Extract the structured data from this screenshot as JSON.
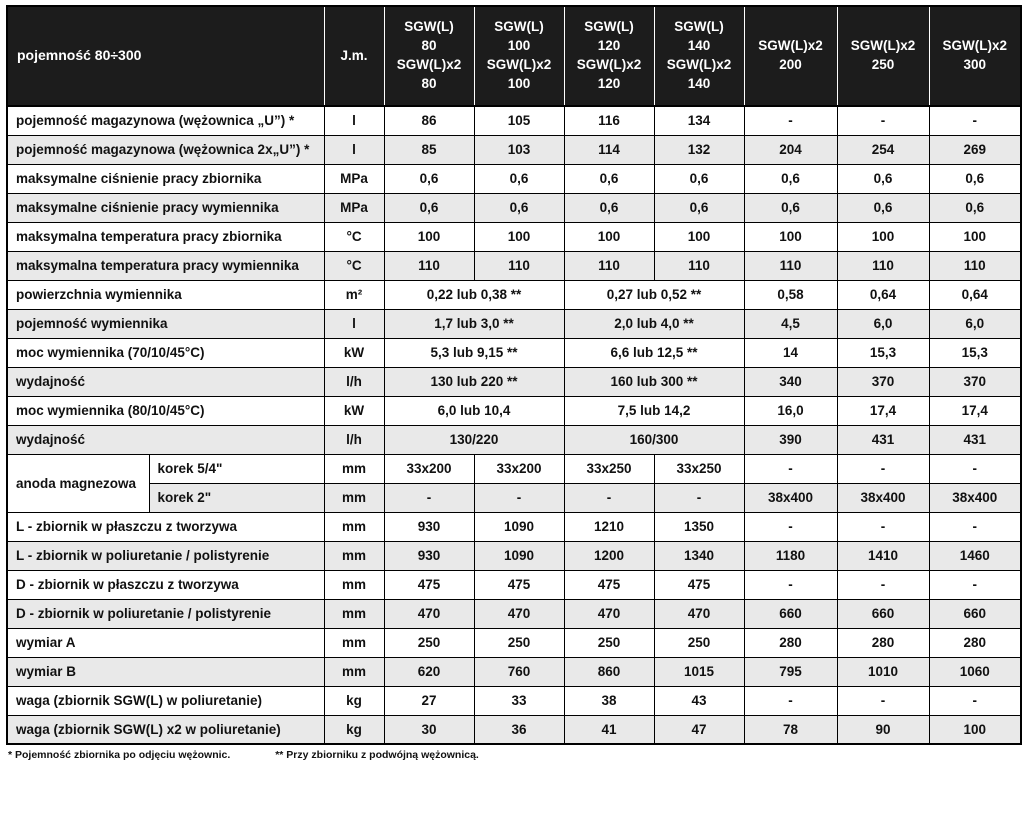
{
  "colors": {
    "header_bg": "#1c1c1c",
    "header_text": "#ffffff",
    "row_alt": "#e9e9e9",
    "border": "#000000"
  },
  "table": {
    "header": {
      "title": "pojemność 80÷300",
      "unit_col": "J.m.",
      "columns": [
        {
          "lines": [
            "SGW(L)",
            "80",
            "SGW(L)x2",
            "80"
          ]
        },
        {
          "lines": [
            "SGW(L)",
            "100",
            "SGW(L)x2",
            "100"
          ]
        },
        {
          "lines": [
            "SGW(L)",
            "120",
            "SGW(L)x2",
            "120"
          ]
        },
        {
          "lines": [
            "SGW(L)",
            "140",
            "SGW(L)x2",
            "140"
          ]
        },
        {
          "lines": [
            "SGW(L)x2",
            "200"
          ]
        },
        {
          "lines": [
            "SGW(L)x2",
            "250"
          ]
        },
        {
          "lines": [
            "SGW(L)x2",
            "300"
          ]
        }
      ]
    },
    "rows": [
      {
        "label": "pojemność magazynowa (wężownica „U”) *",
        "unit": "l",
        "cells": [
          "86",
          "105",
          "116",
          "134",
          "-",
          "-",
          "-"
        ]
      },
      {
        "label": "pojemność magazynowa (wężownica 2x„U”) *",
        "unit": "l",
        "cells": [
          "85",
          "103",
          "114",
          "132",
          "204",
          "254",
          "269"
        ]
      },
      {
        "label": "maksymalne ciśnienie pracy zbiornika",
        "unit": "MPa",
        "cells": [
          "0,6",
          "0,6",
          "0,6",
          "0,6",
          "0,6",
          "0,6",
          "0,6"
        ]
      },
      {
        "label": "maksymalne ciśnienie pracy wymiennika",
        "unit": "MPa",
        "cells": [
          "0,6",
          "0,6",
          "0,6",
          "0,6",
          "0,6",
          "0,6",
          "0,6"
        ]
      },
      {
        "label": "maksymalna temperatura pracy zbiornika",
        "unit": "°C",
        "cells": [
          "100",
          "100",
          "100",
          "100",
          "100",
          "100",
          "100"
        ]
      },
      {
        "label": "maksymalna temperatura pracy wymiennika",
        "unit": "°C",
        "cells": [
          "110",
          "110",
          "110",
          "110",
          "110",
          "110",
          "110"
        ]
      },
      {
        "label": "powierzchnia wymiennika",
        "unit": "m²",
        "cells": [
          {
            "t": "0,22 lub 0,38 **",
            "s": 2
          },
          {
            "t": "0,27 lub 0,52 **",
            "s": 2
          },
          "0,58",
          "0,64",
          "0,64"
        ]
      },
      {
        "label": "pojemność wymiennika",
        "unit": "l",
        "cells": [
          {
            "t": "1,7 lub 3,0 **",
            "s": 2
          },
          {
            "t": "2,0 lub 4,0 **",
            "s": 2
          },
          "4,5",
          "6,0",
          "6,0"
        ]
      },
      {
        "label": "moc wymiennika (70/10/45°C)",
        "unit": "kW",
        "cells": [
          {
            "t": "5,3 lub 9,15 **",
            "s": 2
          },
          {
            "t": "6,6 lub 12,5 **",
            "s": 2
          },
          "14",
          "15,3",
          "15,3"
        ]
      },
      {
        "label": "wydajność",
        "unit": "l/h",
        "cells": [
          {
            "t": "130 lub 220 **",
            "s": 2
          },
          {
            "t": "160 lub 300 **",
            "s": 2
          },
          "340",
          "370",
          "370"
        ]
      },
      {
        "label": "moc wymiennika (80/10/45°C)",
        "unit": "kW",
        "cells": [
          {
            "t": "6,0 lub 10,4",
            "s": 2
          },
          {
            "t": "7,5 lub 14,2",
            "s": 2
          },
          "16,0",
          "17,4",
          "17,4"
        ]
      },
      {
        "label": "wydajność",
        "unit": "l/h",
        "cells": [
          {
            "t": "130/220",
            "s": 2
          },
          {
            "t": "160/300",
            "s": 2
          },
          "390",
          "431",
          "431"
        ]
      },
      {
        "group": "anoda magnezowa",
        "group_span": 2,
        "sublabel": "korek 5/4\"",
        "unit": "mm",
        "cells": [
          "33x200",
          "33x200",
          "33x250",
          "33x250",
          "-",
          "-",
          "-"
        ]
      },
      {
        "sublabel": "korek 2\"",
        "unit": "mm",
        "cells": [
          "-",
          "-",
          "-",
          "-",
          "38x400",
          "38x400",
          "38x400"
        ]
      },
      {
        "label": "L - zbiornik w płaszczu z tworzywa",
        "unit": "mm",
        "cells": [
          "930",
          "1090",
          "1210",
          "1350",
          "-",
          "-",
          "-"
        ]
      },
      {
        "label": "L - zbiornik w poliuretanie / polistyrenie",
        "unit": "mm",
        "cells": [
          "930",
          "1090",
          "1200",
          "1340",
          "1180",
          "1410",
          "1460"
        ]
      },
      {
        "label": "D - zbiornik w płaszczu z tworzywa",
        "unit": "mm",
        "cells": [
          "475",
          "475",
          "475",
          "475",
          "-",
          "-",
          "-"
        ]
      },
      {
        "label": "D - zbiornik w poliuretanie / polistyrenie",
        "unit": "mm",
        "cells": [
          "470",
          "470",
          "470",
          "470",
          "660",
          "660",
          "660"
        ]
      },
      {
        "label": "wymiar A",
        "unit": "mm",
        "cells": [
          "250",
          "250",
          "250",
          "250",
          "280",
          "280",
          "280"
        ]
      },
      {
        "label": "wymiar B",
        "unit": "mm",
        "cells": [
          "620",
          "760",
          "860",
          "1015",
          "795",
          "1010",
          "1060"
        ]
      },
      {
        "label": "waga (zbiornik SGW(L) w poliuretanie)",
        "unit": "kg",
        "cells": [
          "27",
          "33",
          "38",
          "43",
          "-",
          "-",
          "-"
        ]
      },
      {
        "label": "waga (zbiornik SGW(L) x2 w poliuretanie)",
        "unit": "kg",
        "cells": [
          "30",
          "36",
          "41",
          "47",
          "78",
          "90",
          "100"
        ]
      }
    ],
    "footnotes": [
      "* Pojemność zbiornika po odjęciu wężownic.",
      "** Przy zbiorniku z podwójną wężownicą."
    ]
  }
}
